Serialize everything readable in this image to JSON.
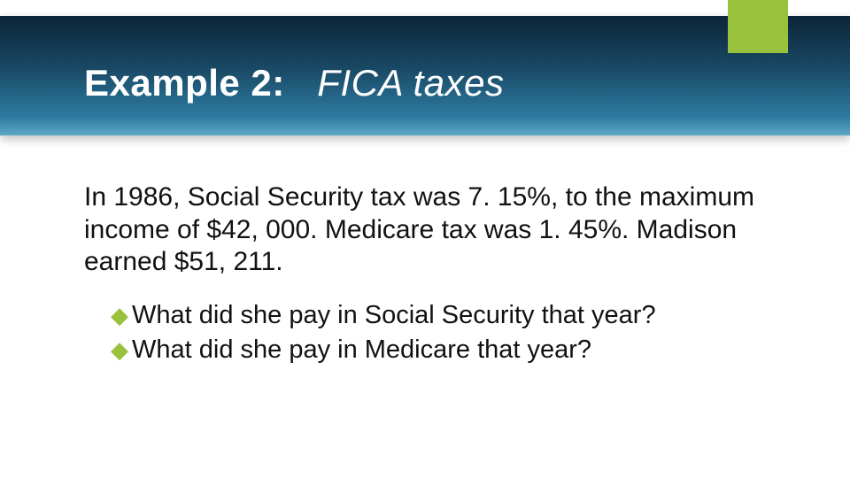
{
  "colors": {
    "accent": "#99c23c",
    "header_gradient_top": "#0d2438",
    "header_gradient_bottom": "#5fa8c7",
    "text": "#111111",
    "title_text": "#ffffff",
    "background": "#ffffff"
  },
  "title": {
    "prefix": "Example 2:",
    "suffix": "FICA taxes"
  },
  "paragraph": "In 1986, Social Security tax was 7. 15%, to the maximum income of $42, 000. Medicare tax was 1. 45%. Madison earned $51, 211.",
  "bullets": [
    "What did she pay in Social Security that year?",
    "What did she pay in Medicare that year?"
  ],
  "bullet_marker": "◆"
}
